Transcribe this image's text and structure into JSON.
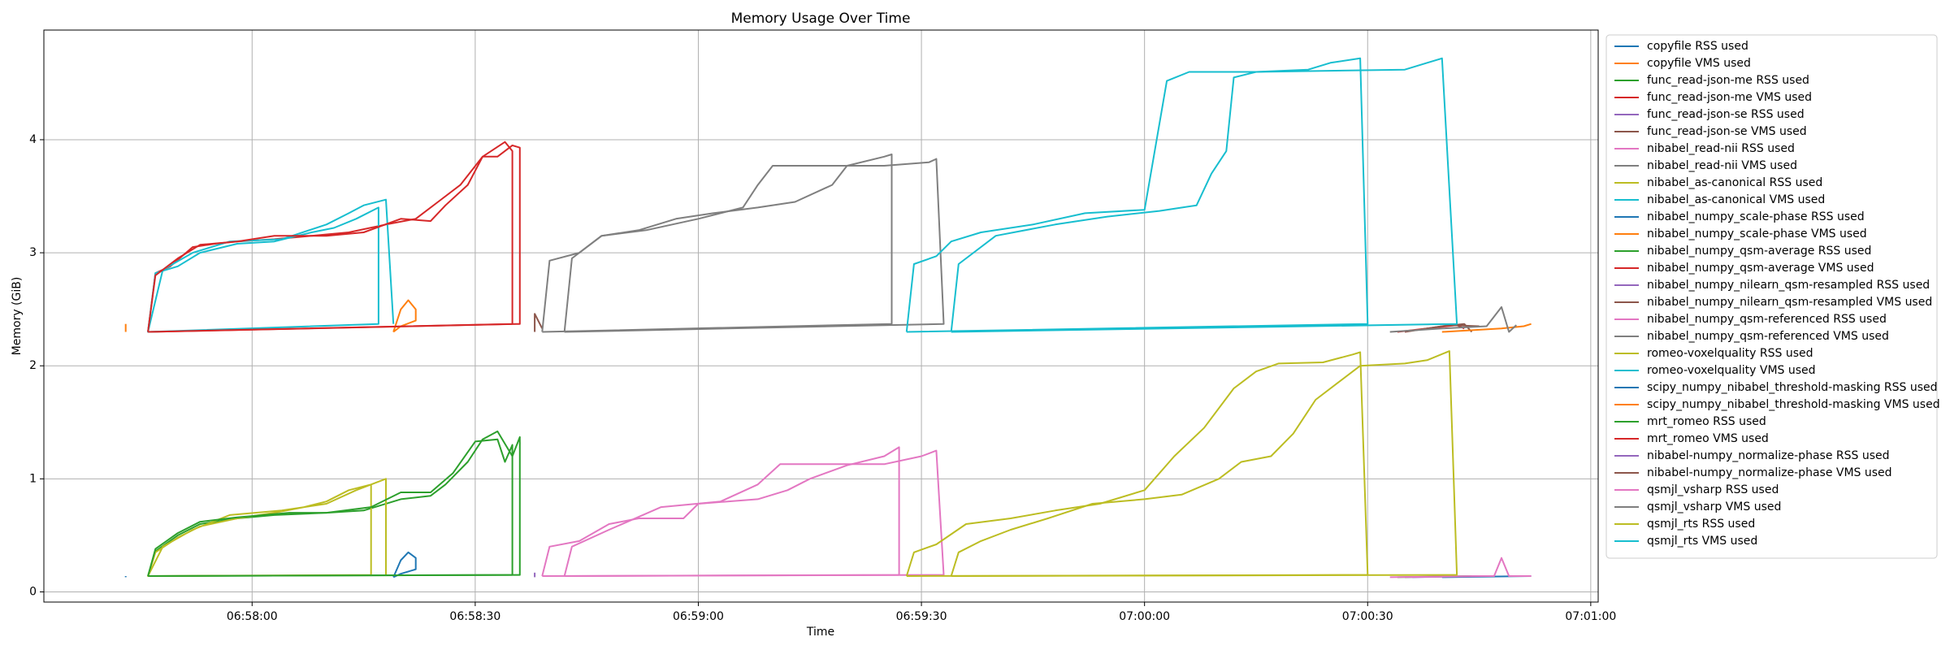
{
  "chart_data": {
    "type": "line",
    "title": "Memory Usage Over Time",
    "x_label": "Time",
    "y_label": "Memory (GiB)",
    "xlim": [
      "06:57:32",
      "07:01:01"
    ],
    "xticks": [
      "06:58:00",
      "06:58:30",
      "06:59:00",
      "06:59:30",
      "07:00:00",
      "07:00:30",
      "07:01:00"
    ],
    "ylim": [
      -0.09,
      4.97
    ],
    "yticks": [
      0,
      1,
      2,
      3,
      4
    ],
    "grid": true,
    "legend": "outside right",
    "series": [
      {
        "name": "copyfile RSS used",
        "color": "#1f77b4",
        "x": [
          "06:57:43",
          "06:57:43"
        ],
        "values": [
          0.13,
          0.14
        ]
      },
      {
        "name": "copyfile VMS used",
        "color": "#ff7f0e",
        "x": [
          "06:57:43",
          "06:57:43"
        ],
        "values": [
          2.3,
          2.37
        ]
      },
      {
        "name": "func_read-json-me RSS used",
        "color": "#2ca02c",
        "x": [
          "06:57:46",
          "06:57:47",
          "06:57:50",
          "06:57:53",
          "06:57:58",
          "06:58:03",
          "06:58:10",
          "06:58:15",
          "06:58:20",
          "06:58:24",
          "06:58:26",
          "06:58:29",
          "06:58:31",
          "06:58:33",
          "06:58:35",
          "06:58:36",
          "06:58:36",
          "06:57:46"
        ],
        "values": [
          0.14,
          0.36,
          0.5,
          0.6,
          0.65,
          0.68,
          0.7,
          0.72,
          0.82,
          0.85,
          0.95,
          1.15,
          1.35,
          1.42,
          1.2,
          1.37,
          0.15,
          0.14
        ]
      },
      {
        "name": "func_read-json-me VMS used",
        "color": "#d62728",
        "x": [
          "06:57:46",
          "06:57:47",
          "06:57:49",
          "06:57:52",
          "06:57:55",
          "06:57:58",
          "06:58:03",
          "06:58:08",
          "06:58:13",
          "06:58:18",
          "06:58:22",
          "06:58:25",
          "06:58:28",
          "06:58:31",
          "06:58:33",
          "06:58:35",
          "06:58:36",
          "06:58:36",
          "06:57:46"
        ],
        "values": [
          2.3,
          2.82,
          2.88,
          3.05,
          3.08,
          3.1,
          3.12,
          3.15,
          3.18,
          3.25,
          3.3,
          3.45,
          3.6,
          3.85,
          3.85,
          3.95,
          3.93,
          2.37,
          2.3
        ]
      },
      {
        "name": "func_read-json-se RSS used",
        "color": "#9467bd",
        "x": [
          "06:58:38",
          "06:58:38"
        ],
        "values": [
          0.13,
          0.17
        ]
      },
      {
        "name": "func_read-json-se VMS used",
        "color": "#8c564b",
        "x": [
          "06:58:38",
          "06:58:38",
          "06:58:39"
        ],
        "values": [
          2.3,
          2.46,
          2.33
        ]
      },
      {
        "name": "nibabel_read-nii RSS used",
        "color": "#e377c2",
        "x": [
          "06:58:39",
          "06:58:40",
          "06:58:44",
          "06:58:48",
          "06:58:52",
          "06:58:58",
          "06:59:00",
          "06:59:08",
          "06:59:12",
          "06:59:15",
          "06:59:20",
          "06:59:25",
          "06:59:27",
          "06:59:27",
          "06:58:39"
        ],
        "values": [
          0.14,
          0.4,
          0.45,
          0.6,
          0.65,
          0.65,
          0.78,
          0.82,
          0.9,
          1.0,
          1.12,
          1.2,
          1.28,
          0.15,
          0.14
        ]
      },
      {
        "name": "nibabel_read-nii VMS used",
        "color": "#7f7f7f",
        "x": [
          "06:58:39",
          "06:58:40",
          "06:58:44",
          "06:58:47",
          "06:58:52",
          "06:58:57",
          "06:59:02",
          "06:59:08",
          "06:59:13",
          "06:59:18",
          "06:59:20",
          "06:59:25",
          "06:59:26",
          "06:59:26",
          "06:58:39"
        ],
        "values": [
          2.3,
          2.93,
          3.0,
          3.15,
          3.2,
          3.3,
          3.35,
          3.4,
          3.45,
          3.6,
          3.77,
          3.85,
          3.87,
          2.37,
          2.3
        ]
      },
      {
        "name": "nibabel_as-canonical RSS used",
        "color": "#bcbd22",
        "x": [
          "06:57:46",
          "06:57:47",
          "06:57:50",
          "06:57:53",
          "06:57:58",
          "06:58:03",
          "06:58:07",
          "06:58:10",
          "06:58:13",
          "06:58:16",
          "06:58:16",
          "06:57:46",
          "06:57:48",
          "06:57:52",
          "06:57:57",
          "06:58:04",
          "06:58:10",
          "06:58:14",
          "06:58:18",
          "06:58:18"
        ],
        "values": [
          0.14,
          0.35,
          0.48,
          0.58,
          0.65,
          0.7,
          0.75,
          0.8,
          0.9,
          0.95,
          0.15,
          0.14,
          0.4,
          0.55,
          0.68,
          0.72,
          0.78,
          0.9,
          1.0,
          0.15
        ]
      },
      {
        "name": "nibabel_as-canonical VMS used",
        "color": "#17becf",
        "x": [
          "06:57:46",
          "06:57:47",
          "06:57:50",
          "06:57:53",
          "06:57:58",
          "06:58:03",
          "06:58:08",
          "06:58:11",
          "06:58:14",
          "06:58:17",
          "06:58:17",
          "06:57:46",
          "06:57:48",
          "06:57:52",
          "06:57:57",
          "06:58:04",
          "06:58:10",
          "06:58:13",
          "06:58:15",
          "06:58:18",
          "06:58:19"
        ],
        "values": [
          2.3,
          2.82,
          2.88,
          3.0,
          3.08,
          3.1,
          3.18,
          3.22,
          3.3,
          3.4,
          2.37,
          2.3,
          2.85,
          3.0,
          3.1,
          3.12,
          3.25,
          3.35,
          3.42,
          3.47,
          2.37
        ]
      },
      {
        "name": "nibabel_numpy_scale-phase RSS used",
        "color": "#1f77b4",
        "x": [
          "06:58:19",
          "06:58:20",
          "06:58:21",
          "06:58:22",
          "06:58:22",
          "06:58:20",
          "06:58:19"
        ],
        "values": [
          0.13,
          0.28,
          0.35,
          0.3,
          0.2,
          0.16,
          0.13
        ]
      },
      {
        "name": "nibabel_numpy_scale-phase VMS used",
        "color": "#ff7f0e",
        "x": [
          "06:58:19",
          "06:58:20",
          "06:58:21",
          "06:58:22",
          "06:58:22",
          "06:58:20",
          "06:58:19"
        ],
        "values": [
          2.3,
          2.5,
          2.58,
          2.5,
          2.4,
          2.35,
          2.3
        ]
      },
      {
        "name": "nibabel_numpy_qsm-average RSS used",
        "color": "#2ca02c",
        "x": [
          "06:57:46",
          "06:57:47",
          "06:57:50",
          "06:57:53",
          "06:57:58",
          "06:58:05",
          "06:58:10",
          "06:58:16",
          "06:58:20",
          "06:58:24",
          "06:58:27",
          "06:58:30",
          "06:58:33",
          "06:58:34",
          "06:58:35",
          "06:58:35",
          "06:57:46"
        ],
        "values": [
          0.14,
          0.38,
          0.52,
          0.62,
          0.66,
          0.7,
          0.7,
          0.75,
          0.88,
          0.88,
          1.05,
          1.33,
          1.35,
          1.15,
          1.3,
          0.15,
          0.14
        ]
      },
      {
        "name": "nibabel_numpy_qsm-average VMS used",
        "color": "#d62728",
        "x": [
          "06:57:46",
          "06:57:47",
          "06:57:50",
          "06:57:53",
          "06:57:58",
          "06:58:03",
          "06:58:10",
          "06:58:15",
          "06:58:20",
          "06:58:24",
          "06:58:26",
          "06:58:29",
          "06:58:31",
          "06:58:34",
          "06:58:35",
          "06:58:35",
          "06:57:46"
        ],
        "values": [
          2.3,
          2.8,
          2.95,
          3.07,
          3.1,
          3.15,
          3.15,
          3.18,
          3.3,
          3.28,
          3.42,
          3.6,
          3.85,
          3.98,
          3.9,
          2.37,
          2.3
        ]
      },
      {
        "name": "nibabel_numpy_nilearn_qsm-resampled RSS used",
        "color": "#9467bd",
        "x": [
          "07:00:35",
          "07:00:45"
        ],
        "values": [
          0.13,
          0.14
        ]
      },
      {
        "name": "nibabel_numpy_nilearn_qsm-resampled VMS used",
        "color": "#8c564b",
        "x": [
          "07:00:35",
          "07:00:40",
          "07:00:43",
          "07:00:44"
        ],
        "values": [
          2.3,
          2.35,
          2.37,
          2.3
        ]
      },
      {
        "name": "nibabel_numpy_qsm-referenced RSS used",
        "color": "#e377c2",
        "x": [
          "06:58:42",
          "06:58:43",
          "06:58:48",
          "06:58:55",
          "06:59:03",
          "06:59:08",
          "06:59:11",
          "06:59:20",
          "06:59:25",
          "06:59:30",
          "06:59:32",
          "06:59:33",
          "06:58:42"
        ],
        "values": [
          0.14,
          0.4,
          0.55,
          0.75,
          0.8,
          0.95,
          1.13,
          1.13,
          1.13,
          1.2,
          1.25,
          0.15,
          0.14
        ]
      },
      {
        "name": "nibabel_numpy_qsm-referenced VMS used",
        "color": "#7f7f7f",
        "x": [
          "06:58:42",
          "06:58:43",
          "06:58:47",
          "06:58:53",
          "06:59:00",
          "06:59:06",
          "06:59:08",
          "06:59:10",
          "06:59:25",
          "06:59:31",
          "06:59:32",
          "06:59:33",
          "06:58:42"
        ],
        "values": [
          2.3,
          2.95,
          3.15,
          3.2,
          3.3,
          3.4,
          3.6,
          3.77,
          3.77,
          3.8,
          3.83,
          2.37,
          2.3
        ]
      },
      {
        "name": "romeo-voxelquality RSS used",
        "color": "#bcbd22",
        "x": [
          "06:59:28",
          "06:59:29",
          "06:59:32",
          "06:59:36",
          "06:59:42",
          "06:59:48",
          "06:59:54",
          "07:00:00",
          "07:00:04",
          "07:00:08",
          "07:00:12",
          "07:00:15",
          "07:00:18",
          "07:00:24",
          "07:00:28",
          "07:00:29",
          "07:00:30",
          "06:59:28"
        ],
        "values": [
          0.14,
          0.35,
          0.42,
          0.6,
          0.65,
          0.72,
          0.78,
          0.9,
          1.2,
          1.45,
          1.8,
          1.95,
          2.02,
          2.03,
          2.1,
          2.12,
          0.15,
          0.14
        ]
      },
      {
        "name": "romeo-voxelquality VMS used",
        "color": "#17becf",
        "x": [
          "06:59:28",
          "06:59:29",
          "06:59:32",
          "06:59:34",
          "06:59:38",
          "06:59:45",
          "06:59:52",
          "07:00:00",
          "07:00:03",
          "07:00:06",
          "07:00:15",
          "07:00:22",
          "07:00:25",
          "07:00:29",
          "07:00:30",
          "06:59:28"
        ],
        "values": [
          2.3,
          2.9,
          2.97,
          3.1,
          3.18,
          3.25,
          3.35,
          3.38,
          4.52,
          4.6,
          4.6,
          4.62,
          4.68,
          4.72,
          2.37,
          2.3
        ]
      },
      {
        "name": "scipy_numpy_nibabel_threshold-masking RSS used",
        "color": "#1f77b4",
        "x": [
          "07:00:40",
          "07:00:52"
        ],
        "values": [
          0.13,
          0.14
        ]
      },
      {
        "name": "scipy_numpy_nibabel_threshold-masking VMS used",
        "color": "#ff7f0e",
        "x": [
          "07:00:40",
          "07:00:48",
          "07:00:51",
          "07:00:52"
        ],
        "values": [
          2.3,
          2.33,
          2.35,
          2.37
        ]
      },
      {
        "name": "mrt_romeo RSS used",
        "color": "#2ca02c",
        "x": [
          "07:00:34",
          "07:00:44"
        ],
        "values": [
          0.13,
          0.14
        ]
      },
      {
        "name": "mrt_romeo VMS used",
        "color": "#d62728",
        "x": [
          "07:00:34",
          "07:00:38",
          "07:00:42",
          "07:00:43"
        ],
        "values": [
          2.3,
          2.33,
          2.36,
          2.33
        ]
      },
      {
        "name": "nibabel-numpy_normalize-phase RSS used",
        "color": "#9467bd",
        "x": [
          "07:00:36",
          "07:00:46"
        ],
        "values": [
          0.13,
          0.14
        ]
      },
      {
        "name": "nibabel-numpy_normalize-phase VMS used",
        "color": "#8c564b",
        "x": [
          "07:00:37",
          "07:00:41",
          "07:00:45"
        ],
        "values": [
          2.32,
          2.36,
          2.35
        ]
      },
      {
        "name": "qsmjl_vsharp RSS used",
        "color": "#e377c2",
        "x": [
          "07:00:33",
          "07:00:45",
          "07:00:47",
          "07:00:48",
          "07:00:49",
          "07:00:52"
        ],
        "values": [
          0.13,
          0.14,
          0.14,
          0.3,
          0.14,
          0.14
        ]
      },
      {
        "name": "qsmjl_vsharp VMS used",
        "color": "#7f7f7f",
        "x": [
          "07:00:33",
          "07:00:40",
          "07:00:46",
          "07:00:48",
          "07:00:49",
          "07:00:50"
        ],
        "values": [
          2.3,
          2.33,
          2.35,
          2.52,
          2.3,
          2.36
        ]
      },
      {
        "name": "qsmjl_rts RSS used",
        "color": "#bcbd22",
        "x": [
          "06:59:34",
          "06:59:35",
          "06:59:38",
          "06:59:42",
          "06:59:47",
          "06:59:53",
          "07:00:00",
          "07:00:05",
          "07:00:10",
          "07:00:13",
          "07:00:17",
          "07:00:20",
          "07:00:23",
          "07:00:26",
          "07:00:29",
          "07:00:35",
          "07:00:38",
          "07:00:41",
          "07:00:42",
          "06:59:34"
        ],
        "values": [
          0.14,
          0.35,
          0.45,
          0.55,
          0.65,
          0.78,
          0.82,
          0.86,
          1.0,
          1.15,
          1.2,
          1.4,
          1.7,
          1.85,
          2.0,
          2.02,
          2.05,
          2.13,
          0.15,
          0.14
        ]
      },
      {
        "name": "qsmjl_rts VMS used",
        "color": "#17becf",
        "x": [
          "06:59:34",
          "06:59:35",
          "06:59:40",
          "06:59:48",
          "06:59:55",
          "07:00:02",
          "07:00:07",
          "07:00:09",
          "07:00:11",
          "07:00:12",
          "07:00:15",
          "07:00:35",
          "07:00:38",
          "07:00:40",
          "07:00:42",
          "06:59:34"
        ],
        "values": [
          2.3,
          2.9,
          3.15,
          3.25,
          3.32,
          3.37,
          3.42,
          3.7,
          3.9,
          4.55,
          4.6,
          4.62,
          4.68,
          4.72,
          2.37,
          2.3
        ]
      }
    ]
  }
}
